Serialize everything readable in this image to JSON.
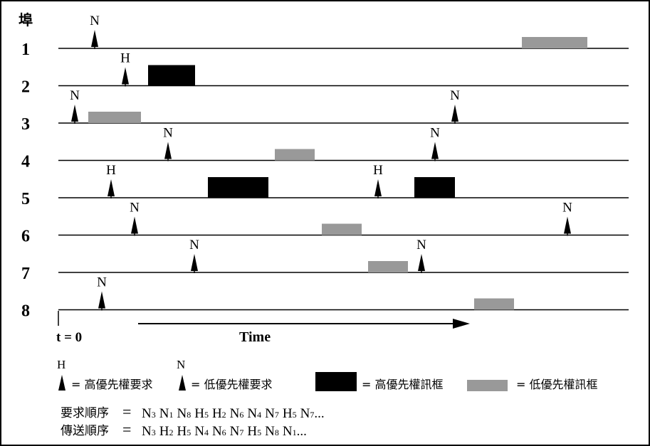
{
  "header": {
    "port_label": "埠"
  },
  "colors": {
    "high_frame": "#000000",
    "low_frame": "#999999",
    "line": "#000000"
  },
  "ports": [
    {
      "label": "1",
      "requests": [
        {
          "type": "N",
          "t": 133
        }
      ],
      "frames": [
        {
          "type": "low",
          "start": 733,
          "end": 825
        }
      ]
    },
    {
      "label": "2",
      "requests": [
        {
          "type": "H",
          "t": 176
        }
      ],
      "frames": [
        {
          "type": "high",
          "start": 208,
          "end": 274
        }
      ]
    },
    {
      "label": "3",
      "requests": [
        {
          "type": "N",
          "t": 105
        },
        {
          "type": "N",
          "t": 639
        }
      ],
      "frames": [
        {
          "type": "low",
          "start": 124,
          "end": 198
        }
      ]
    },
    {
      "label": "4",
      "requests": [
        {
          "type": "N",
          "t": 236
        },
        {
          "type": "N",
          "t": 611
        }
      ],
      "frames": [
        {
          "type": "low",
          "start": 386,
          "end": 442
        }
      ]
    },
    {
      "label": "5",
      "requests": [
        {
          "type": "H",
          "t": 156
        },
        {
          "type": "H",
          "t": 531
        }
      ],
      "frames": [
        {
          "type": "high",
          "start": 292,
          "end": 377
        },
        {
          "type": "high",
          "start": 582,
          "end": 639
        }
      ]
    },
    {
      "label": "6",
      "requests": [
        {
          "type": "N",
          "t": 189
        },
        {
          "type": "N",
          "t": 797
        }
      ],
      "frames": [
        {
          "type": "low",
          "start": 452,
          "end": 508
        }
      ]
    },
    {
      "label": "7",
      "requests": [
        {
          "type": "N",
          "t": 273
        },
        {
          "type": "N",
          "t": 592
        }
      ],
      "frames": [
        {
          "type": "low",
          "start": 517,
          "end": 573
        }
      ]
    },
    {
      "label": "8",
      "requests": [
        {
          "type": "N",
          "t": 143
        }
      ],
      "frames": [
        {
          "type": "low",
          "start": 666,
          "end": 722
        }
      ]
    }
  ],
  "axis": {
    "t0_label": "t = 0",
    "time_label": "Time"
  },
  "legend": {
    "high_request_letter": "H",
    "high_request_text": "= 高優先權要求",
    "low_request_letter": "N",
    "low_request_text": "= 低優先權要求",
    "high_frame_text": "= 高優先權訊框",
    "low_frame_text": "= 低優先權訊框"
  },
  "sequences": {
    "request_label": "要求順序",
    "request_items": [
      {
        "letter": "N",
        "sub": "3"
      },
      {
        "letter": "N",
        "sub": "1"
      },
      {
        "letter": "N",
        "sub": "8"
      },
      {
        "letter": "H",
        "sub": "5"
      },
      {
        "letter": "H",
        "sub": "2"
      },
      {
        "letter": "N",
        "sub": "6"
      },
      {
        "letter": "N",
        "sub": "4"
      },
      {
        "letter": "N",
        "sub": "7"
      },
      {
        "letter": "H",
        "sub": "5"
      },
      {
        "letter": "N",
        "sub": "7"
      }
    ],
    "transmit_label": "傳送順序",
    "transmit_items": [
      {
        "letter": "N",
        "sub": "3"
      },
      {
        "letter": "H",
        "sub": "2"
      },
      {
        "letter": "H",
        "sub": "5"
      },
      {
        "letter": "N",
        "sub": "4"
      },
      {
        "letter": "N",
        "sub": "6"
      },
      {
        "letter": "N",
        "sub": "7"
      },
      {
        "letter": "H",
        "sub": "5"
      },
      {
        "letter": "N",
        "sub": "8"
      },
      {
        "letter": "N",
        "sub": "1"
      }
    ],
    "equals": "=",
    "ellipsis": "..."
  }
}
